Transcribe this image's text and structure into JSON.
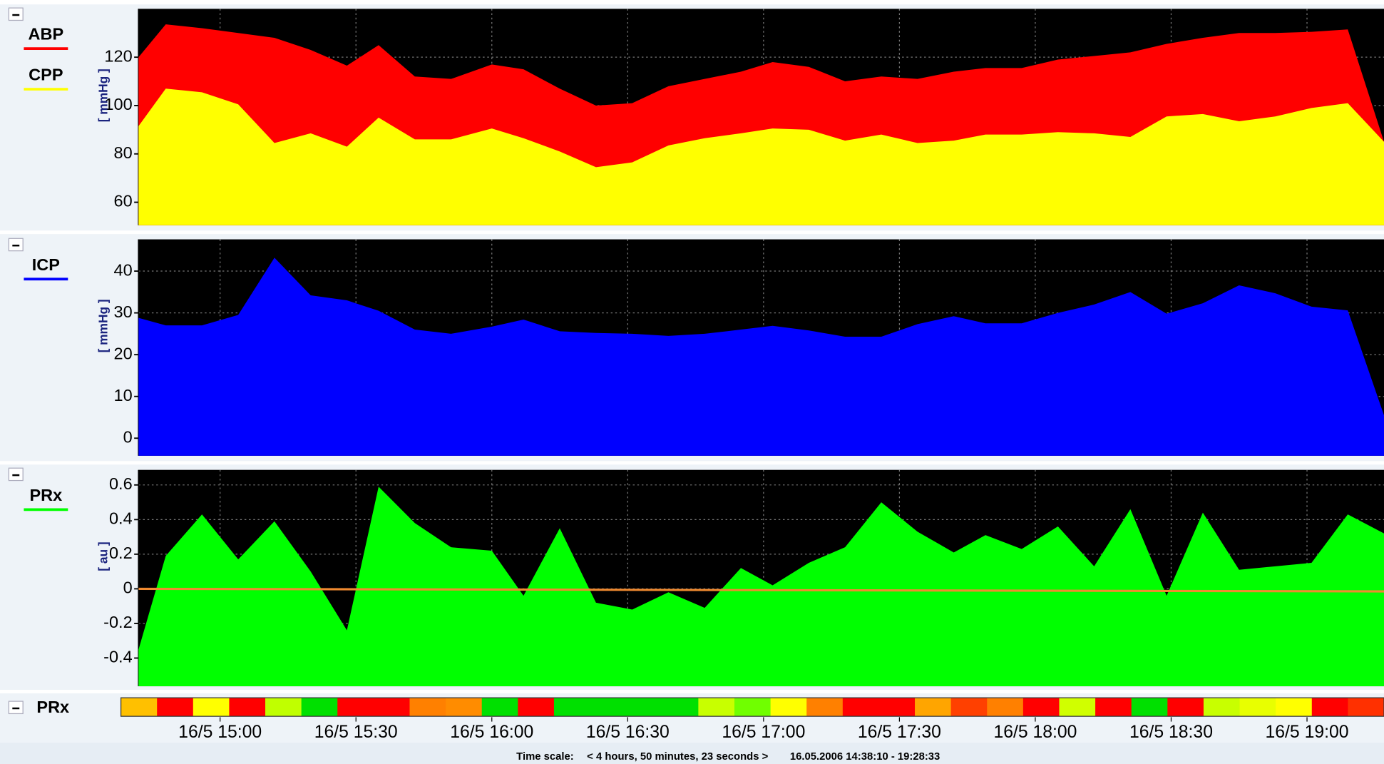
{
  "time_axis": {
    "xlim": [
      "16/5 14:42",
      "16/5 19:17"
    ],
    "xticks": [
      "16/5 15:00",
      "16/5 15:30",
      "16/5 16:00",
      "16/5 16:30",
      "16/5 17:00",
      "16/5 17:30",
      "16/5 18:00",
      "16/5 18:30",
      "16/5 19:00"
    ],
    "x": [
      "16/5 14:42",
      "16/5 14:48",
      "16/5 14:56",
      "16/5 15:04",
      "16/5 15:12",
      "16/5 15:20",
      "16/5 15:28",
      "16/5 15:35",
      "16/5 15:43",
      "16/5 15:51",
      "16/5 16:00",
      "16/5 16:07",
      "16/5 16:15",
      "16/5 16:23",
      "16/5 16:31",
      "16/5 16:39",
      "16/5 16:47",
      "16/5 16:55",
      "16/5 17:02",
      "16/5 17:10",
      "16/5 17:18",
      "16/5 17:26",
      "16/5 17:34",
      "16/5 17:42",
      "16/5 17:49",
      "16/5 17:57",
      "16/5 18:05",
      "16/5 18:13",
      "16/5 18:21",
      "16/5 18:29",
      "16/5 18:37",
      "16/5 18:45",
      "16/5 18:53",
      "16/5 19:01",
      "16/5 19:09",
      "16/5 19:17"
    ]
  },
  "chart_data": [
    {
      "type": "area",
      "ylabel": "[ mmHg ]",
      "ylim": [
        50.5,
        140
      ],
      "yticks": [
        60,
        80,
        100,
        120
      ],
      "grid": true,
      "series": [
        {
          "name": "ABP",
          "color": "#ff0000",
          "values": [
            120,
            133.6,
            132,
            130,
            128,
            123,
            116.5,
            125,
            112,
            111,
            117,
            115,
            107,
            100,
            101,
            108,
            111,
            114,
            118,
            116,
            110,
            112,
            111,
            114,
            115.5,
            115.5,
            119,
            120.5,
            122,
            125.5,
            128,
            130,
            130,
            130.5,
            131.5,
            85
          ]
        },
        {
          "name": "CPP",
          "color": "#ffff00",
          "values": [
            91.5,
            107,
            105.5,
            100.5,
            84.5,
            88.5,
            83,
            95,
            86,
            86,
            90.5,
            86.5,
            81,
            74.5,
            76.5,
            83.5,
            86.5,
            88.5,
            90.5,
            90,
            85.5,
            88,
            84.5,
            85.5,
            88,
            88,
            89,
            88.5,
            87,
            95.5,
            96.5,
            93.5,
            95.5,
            99,
            101,
            85
          ]
        }
      ]
    },
    {
      "type": "area",
      "ylabel": "[ mmHg ]",
      "ylim": [
        -4.2,
        47.6
      ],
      "yticks": [
        0,
        10,
        20,
        30,
        40
      ],
      "grid": true,
      "series": [
        {
          "name": "ICP",
          "color": "#0000ff",
          "values": [
            28.8,
            27,
            27,
            29.5,
            43.2,
            34.2,
            33,
            30.5,
            26,
            25,
            26.7,
            28.4,
            25.6,
            25.2,
            25,
            24.5,
            25,
            26,
            26.9,
            25.8,
            24.3,
            24.3,
            27.3,
            29.2,
            27.5,
            27.5,
            30,
            32,
            35,
            29.8,
            32.3,
            36.6,
            34.7,
            31.5,
            30.6,
            5.5
          ]
        }
      ]
    },
    {
      "type": "area",
      "ylabel": "[ au ]",
      "ylim": [
        -0.563,
        0.687
      ],
      "yticks": [
        -0.4,
        -0.2,
        0,
        0.2,
        0.4,
        0.6
      ],
      "grid": true,
      "series": [
        {
          "name": "PRx",
          "color": "#00ff00",
          "values": [
            -0.35,
            0.19,
            0.43,
            0.17,
            0.39,
            0.1,
            -0.24,
            0.59,
            0.38,
            0.24,
            0.22,
            -0.04,
            0.35,
            -0.08,
            -0.12,
            -0.02,
            -0.11,
            0.12,
            0.02,
            0.15,
            0.24,
            0.5,
            0.33,
            0.21,
            0.31,
            0.23,
            0.36,
            0.13,
            0.46,
            -0.04,
            0.44,
            0.11,
            0.13,
            0.15,
            0.43,
            0.32
          ]
        }
      ],
      "trend_line": {
        "color": "#f08a30",
        "x": [
          "16/5 14:42",
          "16/5 19:17"
        ],
        "values": [
          0,
          -0.015
        ]
      }
    }
  ],
  "prx_bar": {
    "label": "PRx",
    "colors": [
      "#ffc000",
      "#ff0000",
      "#ffff00",
      "#ff0000",
      "#c0ff00",
      "#00e000",
      "#ff0000",
      "#ff0000",
      "#ff8000",
      "#ff8c00",
      "#00e000",
      "#ff0000",
      "#00e000",
      "#00e000",
      "#00e000",
      "#00e000",
      "#c8ff00",
      "#70ff00",
      "#ffff00",
      "#ff8000",
      "#ff0000",
      "#ff0000",
      "#ffa500",
      "#ff4000",
      "#ff8000",
      "#ff0000",
      "#d0ff00",
      "#ff0000",
      "#00e000",
      "#ff0000",
      "#c8ff00",
      "#e8ff00",
      "#ffff00",
      "#ff0000",
      "#ff3000"
    ]
  },
  "footer": {
    "label": "Time scale:",
    "span": "< 4 hours, 50 minutes, 23 seconds >",
    "range": "16.05.2006 14:38:10 - 19:28:33"
  }
}
